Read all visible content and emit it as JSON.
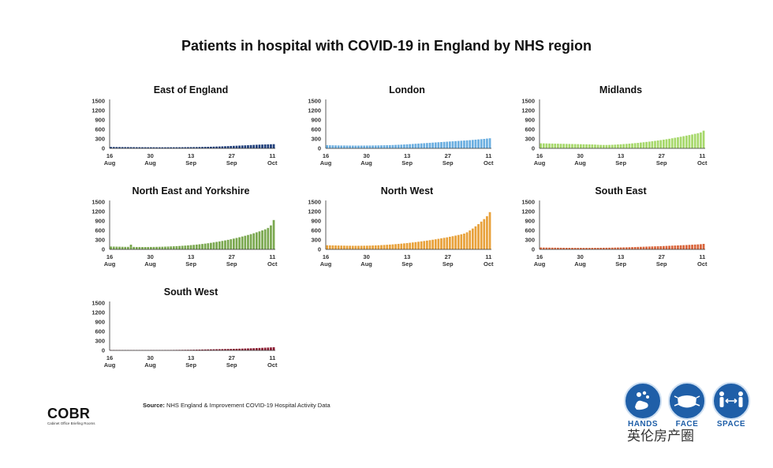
{
  "title": "Patients in hospital with COVID-19 in England by NHS region",
  "source": {
    "label": "Source:",
    "text": "NHS England & Improvement COVID-19 Hospital Activity Data"
  },
  "logo": {
    "text": "COBR",
    "subtitle": "Cabinet Office Briefing Rooms"
  },
  "badges": [
    {
      "label": "HANDS",
      "icon": "hands-icon"
    },
    {
      "label": "FACE",
      "icon": "face-mask-icon"
    },
    {
      "label": "SPACE",
      "icon": "distance-icon"
    }
  ],
  "watermark": "英伦房产圈",
  "chart_data": [
    {
      "type": "bar",
      "title": "East of England",
      "color": "#1f3e7a",
      "x_ticks": [
        "16\nAug",
        "30\nAug",
        "13\nSep",
        "27\nSep",
        "11\nOct"
      ],
      "y_ticks": [
        0,
        300,
        600,
        900,
        1200,
        1500
      ],
      "ylim": [
        0,
        1500
      ],
      "start": "2020-08-16",
      "end": "2020-10-12",
      "values": [
        45,
        44,
        43,
        42,
        41,
        40,
        40,
        39,
        38,
        37,
        37,
        36,
        36,
        35,
        35,
        35,
        34,
        34,
        34,
        34,
        35,
        35,
        35,
        36,
        36,
        37,
        38,
        39,
        40,
        41,
        42,
        44,
        46,
        48,
        50,
        52,
        55,
        58,
        61,
        64,
        68,
        72,
        76,
        80,
        84,
        88,
        92,
        96,
        100,
        105,
        110,
        114,
        118,
        121,
        124,
        127,
        130,
        133
      ]
    },
    {
      "type": "bar",
      "title": "London",
      "color": "#6aaee0",
      "x_ticks": [
        "16\nAug",
        "30\nAug",
        "13\nSep",
        "27\nSep",
        "11\nOct"
      ],
      "y_ticks": [
        0,
        300,
        600,
        900,
        1200,
        1500
      ],
      "ylim": [
        0,
        1500
      ],
      "start": "2020-08-16",
      "end": "2020-10-12",
      "values": [
        100,
        98,
        96,
        94,
        92,
        90,
        90,
        89,
        88,
        88,
        87,
        87,
        88,
        88,
        89,
        90,
        91,
        92,
        94,
        96,
        98,
        100,
        103,
        106,
        110,
        114,
        118,
        123,
        128,
        134,
        140,
        146,
        152,
        158,
        164,
        170,
        176,
        182,
        188,
        194,
        200,
        206,
        212,
        218,
        224,
        230,
        236,
        242,
        248,
        254,
        260,
        268,
        276,
        284,
        292,
        300,
        310,
        320
      ]
    },
    {
      "type": "bar",
      "title": "Midlands",
      "color": "#a6d86a",
      "x_ticks": [
        "16\nAug",
        "30\nAug",
        "13\nSep",
        "27\nSep",
        "11\nOct"
      ],
      "y_ticks": [
        0,
        300,
        600,
        900,
        1200,
        1500
      ],
      "ylim": [
        0,
        1500
      ],
      "start": "2020-08-16",
      "end": "2020-10-12",
      "values": [
        160,
        158,
        156,
        154,
        152,
        150,
        148,
        146,
        144,
        142,
        140,
        138,
        136,
        134,
        132,
        130,
        128,
        126,
        124,
        120,
        115,
        110,
        108,
        108,
        110,
        114,
        118,
        124,
        130,
        136,
        142,
        150,
        158,
        166,
        174,
        184,
        194,
        204,
        214,
        226,
        238,
        250,
        262,
        276,
        290,
        304,
        320,
        336,
        352,
        368,
        386,
        404,
        422,
        440,
        460,
        480,
        505,
        560
      ]
    },
    {
      "type": "bar",
      "title": "North East and Yorkshire",
      "color": "#7aa84f",
      "x_ticks": [
        "16\nAug",
        "30\nAug",
        "13\nSep",
        "27\nSep",
        "11\nOct"
      ],
      "y_ticks": [
        0,
        300,
        600,
        900,
        1200,
        1500
      ],
      "ylim": [
        0,
        1500
      ],
      "start": "2020-08-16",
      "end": "2020-10-12",
      "values": [
        90,
        88,
        86,
        84,
        82,
        80,
        80,
        150,
        78,
        76,
        76,
        75,
        75,
        76,
        77,
        78,
        80,
        82,
        84,
        87,
        90,
        94,
        98,
        103,
        108,
        114,
        120,
        127,
        135,
        143,
        152,
        162,
        172,
        183,
        195,
        208,
        222,
        237,
        252,
        268,
        285,
        303,
        322,
        342,
        363,
        385,
        408,
        432,
        457,
        483,
        510,
        540,
        570,
        602,
        635,
        680,
        760,
        930
      ]
    },
    {
      "type": "bar",
      "title": "North West",
      "color": "#e8a13a",
      "x_ticks": [
        "16\nAug",
        "30\nAug",
        "13\nSep",
        "27\nSep",
        "11\nOct"
      ],
      "y_ticks": [
        0,
        300,
        600,
        900,
        1200,
        1500
      ],
      "ylim": [
        0,
        1500
      ],
      "start": "2020-08-16",
      "end": "2020-10-12",
      "values": [
        130,
        128,
        126,
        124,
        122,
        120,
        118,
        116,
        115,
        114,
        114,
        114,
        115,
        116,
        118,
        120,
        123,
        126,
        130,
        135,
        140,
        146,
        152,
        159,
        166,
        174,
        182,
        191,
        200,
        210,
        220,
        231,
        242,
        254,
        266,
        279,
        292,
        306,
        320,
        335,
        350,
        366,
        382,
        400,
        418,
        437,
        457,
        478,
        500,
        540,
        600,
        660,
        730,
        800,
        880,
        960,
        1050,
        1180
      ]
    },
    {
      "type": "bar",
      "title": "South East",
      "color": "#d9643a",
      "x_ticks": [
        "16\nAug",
        "30\nAug",
        "13\nSep",
        "27\nSep",
        "11\nOct"
      ],
      "y_ticks": [
        0,
        300,
        600,
        900,
        1200,
        1500
      ],
      "ylim": [
        0,
        1500
      ],
      "start": "2020-08-16",
      "end": "2020-10-12",
      "values": [
        60,
        58,
        57,
        56,
        55,
        54,
        53,
        52,
        51,
        50,
        50,
        49,
        49,
        48,
        48,
        48,
        48,
        48,
        49,
        49,
        50,
        51,
        52,
        53,
        54,
        56,
        58,
        60,
        62,
        64,
        66,
        69,
        72,
        75,
        78,
        81,
        84,
        87,
        90,
        93,
        96,
        99,
        102,
        106,
        110,
        114,
        118,
        122,
        126,
        130,
        134,
        138,
        143,
        148,
        153,
        158,
        165,
        175
      ]
    },
    {
      "type": "bar",
      "title": "South West",
      "color": "#8a1a30",
      "x_ticks": [
        "16\nAug",
        "30\nAug",
        "13\nSep",
        "27\nSep",
        "11\nOct"
      ],
      "y_ticks": [
        0,
        300,
        600,
        900,
        1200,
        1500
      ],
      "ylim": [
        0,
        1500
      ],
      "start": "2020-08-16",
      "end": "2020-10-12",
      "values": [
        12,
        12,
        11,
        11,
        10,
        10,
        10,
        9,
        9,
        9,
        9,
        9,
        9,
        9,
        10,
        10,
        10,
        11,
        11,
        12,
        12,
        13,
        14,
        15,
        16,
        17,
        18,
        19,
        20,
        22,
        24,
        26,
        28,
        30,
        32,
        34,
        36,
        38,
        40,
        42,
        44,
        46,
        48,
        50,
        52,
        55,
        58,
        61,
        64,
        67,
        70,
        74,
        78,
        82,
        86,
        90,
        95,
        100
      ]
    }
  ]
}
